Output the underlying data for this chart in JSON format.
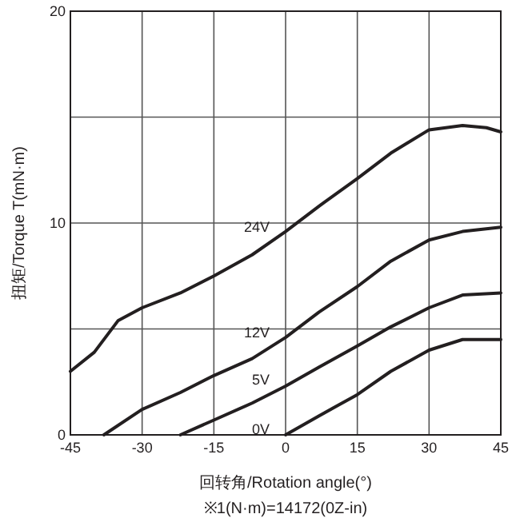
{
  "chart_data": {
    "type": "line",
    "xlabel": "回转角/Rotation angle(°)",
    "ylabel": "扭矩/Torque T(mN·m)",
    "xlim": [
      -45,
      45
    ],
    "ylim": [
      0,
      20
    ],
    "xticks": [
      -45,
      -30,
      -15,
      0,
      15,
      30,
      45
    ],
    "yticks": [
      0,
      {
        "value": 5,
        "label": null
      },
      10,
      {
        "value": 15,
        "label": null
      },
      20
    ],
    "grid": true,
    "marker": "none",
    "line_style": "solid",
    "series": [
      {
        "name": "24V",
        "color": "#231f20",
        "x": [
          -45,
          -40,
          -35,
          -30,
          -22,
          -15,
          -7,
          0,
          7,
          15,
          22,
          30,
          37,
          42,
          45
        ],
        "values": [
          3.0,
          3.9,
          5.4,
          6.0,
          6.7,
          7.5,
          8.5,
          9.6,
          10.8,
          12.1,
          13.3,
          14.4,
          14.6,
          14.5,
          14.3
        ]
      },
      {
        "name": "12V",
        "color": "#231f20",
        "x": [
          -38,
          -30,
          -22,
          -15,
          -7,
          0,
          7,
          15,
          22,
          30,
          37,
          45
        ],
        "values": [
          0,
          1.2,
          2.0,
          2.8,
          3.6,
          4.6,
          5.8,
          7.0,
          8.2,
          9.2,
          9.6,
          9.8
        ]
      },
      {
        "name": "5V",
        "color": "#231f20",
        "x": [
          -22,
          -15,
          -7,
          0,
          7,
          15,
          22,
          30,
          37,
          45
        ],
        "values": [
          0,
          0.7,
          1.5,
          2.3,
          3.2,
          4.2,
          5.1,
          6.0,
          6.6,
          6.7
        ]
      },
      {
        "name": "0V",
        "color": "#231f20",
        "x": [
          0,
          7,
          15,
          22,
          30,
          37,
          45
        ],
        "values": [
          0,
          0.9,
          1.9,
          3.0,
          4.0,
          4.5,
          4.5
        ]
      }
    ],
    "annotations": [
      "※1(N·m)=14172(0Z-in)"
    ]
  }
}
